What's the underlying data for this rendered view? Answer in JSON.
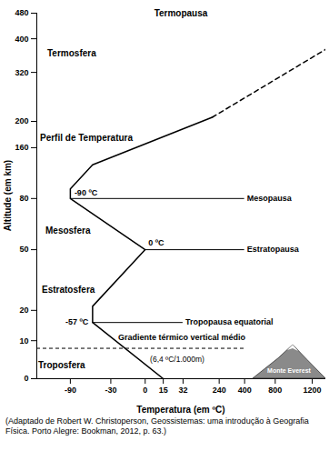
{
  "chart_data": {
    "type": "line",
    "x_label": "Temperatura (em ºC)",
    "y_label": "Altitude (em km)",
    "xlim": [
      -135,
      1300
    ],
    "xticks": [
      -90,
      -30,
      0,
      15,
      32,
      240,
      400,
      800,
      1200
    ],
    "ylim": [
      0,
      480
    ],
    "yticks": [
      0,
      10,
      20,
      50,
      80,
      160,
      200,
      320,
      400,
      480
    ],
    "grid": false,
    "series": [
      {
        "name": "Perfil de Temperatura",
        "color": "#000000",
        "line_style": "solid",
        "x": [
          15,
          -57,
          -57,
          0,
          -90,
          -90,
          -57,
          200
        ],
        "values": [
          0,
          16,
          22,
          50,
          80,
          95,
          133,
          210
        ]
      },
      {
        "color": "#000000",
        "line_style": "dashed",
        "x": [
          200,
          1300
        ],
        "values": [
          210,
          375
        ]
      }
    ],
    "boundaries": [
      {
        "name": "Termopausa",
        "altitude": 480
      },
      {
        "name": "Mesopausa",
        "altitude": 80,
        "temperature": -90,
        "temperature_label": "-90 ºC"
      },
      {
        "name": "Estratopausa",
        "altitude": 50,
        "temperature": 0,
        "temperature_label": "0 ºC"
      },
      {
        "name": "Tropopausa equatorial",
        "altitude": 16,
        "temperature": -57,
        "temperature_label": "-57 ºC"
      }
    ],
    "layers": [
      "Termosfera",
      "Mesosfera",
      "Estratosfera",
      "Troposfera"
    ],
    "gradient": {
      "label": "Gradiente térmico vertical médio",
      "rate_label": "(6,4 ºC/1.000m)",
      "altitude": 8
    },
    "landmark": {
      "label": "Monte Everest",
      "altitude": 8.848
    },
    "caption": "(Adaptado de Robert W. Christoperson, Geossistemas: uma introdução à Geografia Física. Porto Alegre: Bookman, 2012, p. 63.)"
  }
}
